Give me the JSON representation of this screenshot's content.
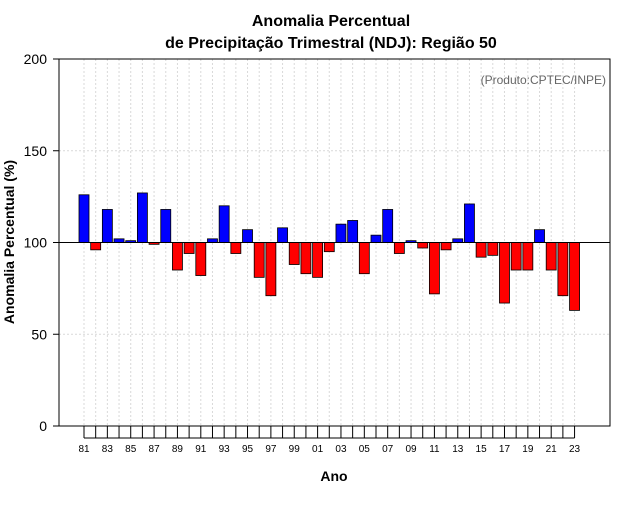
{
  "chart_data": {
    "type": "bar",
    "title_line1": "Anomalia Percentual",
    "title_line2": "de Precipitação Trimestral (NDJ): Região 50",
    "xlabel": "Ano",
    "ylabel": "Anomalia Percentual (%)",
    "annotation": "(Produto:CPTEC/INPE)",
    "ylim": [
      0,
      200
    ],
    "y_ticks": [
      "0",
      "50",
      "100",
      "150",
      "200"
    ],
    "baseline": 100,
    "categories": [
      "81",
      "82",
      "83",
      "84",
      "85",
      "86",
      "87",
      "88",
      "89",
      "90",
      "91",
      "92",
      "93",
      "94",
      "95",
      "96",
      "97",
      "98",
      "99",
      "00",
      "01",
      "02",
      "03",
      "04",
      "05",
      "06",
      "07",
      "08",
      "09",
      "10",
      "11",
      "12",
      "13",
      "14",
      "15",
      "16",
      "17",
      "18",
      "19",
      "20",
      "21",
      "22",
      "23"
    ],
    "x_tick_labels": [
      "81",
      "",
      "83",
      "",
      "85",
      "",
      "87",
      "",
      "89",
      "",
      "91",
      "",
      "93",
      "",
      "95",
      "",
      "97",
      "",
      "99",
      "",
      "01",
      "",
      "03",
      "",
      "05",
      "",
      "07",
      "",
      "09",
      "",
      "11",
      "",
      "13",
      "",
      "15",
      "",
      "17",
      "",
      "19",
      "",
      "21",
      "",
      "23"
    ],
    "values": [
      126,
      96,
      118,
      102,
      101,
      127,
      99,
      118,
      85,
      94,
      82,
      102,
      120,
      94,
      107,
      81,
      71,
      108,
      88,
      83,
      81,
      95,
      110,
      112,
      83,
      104,
      118,
      94,
      101,
      97,
      72,
      96,
      102,
      121,
      92,
      93,
      67,
      85,
      85,
      107,
      85,
      71,
      63
    ],
    "colors": {
      "above": "#0000ff",
      "below": "#ff0000",
      "grid": "#d9d9d9",
      "axis": "#000000"
    }
  }
}
